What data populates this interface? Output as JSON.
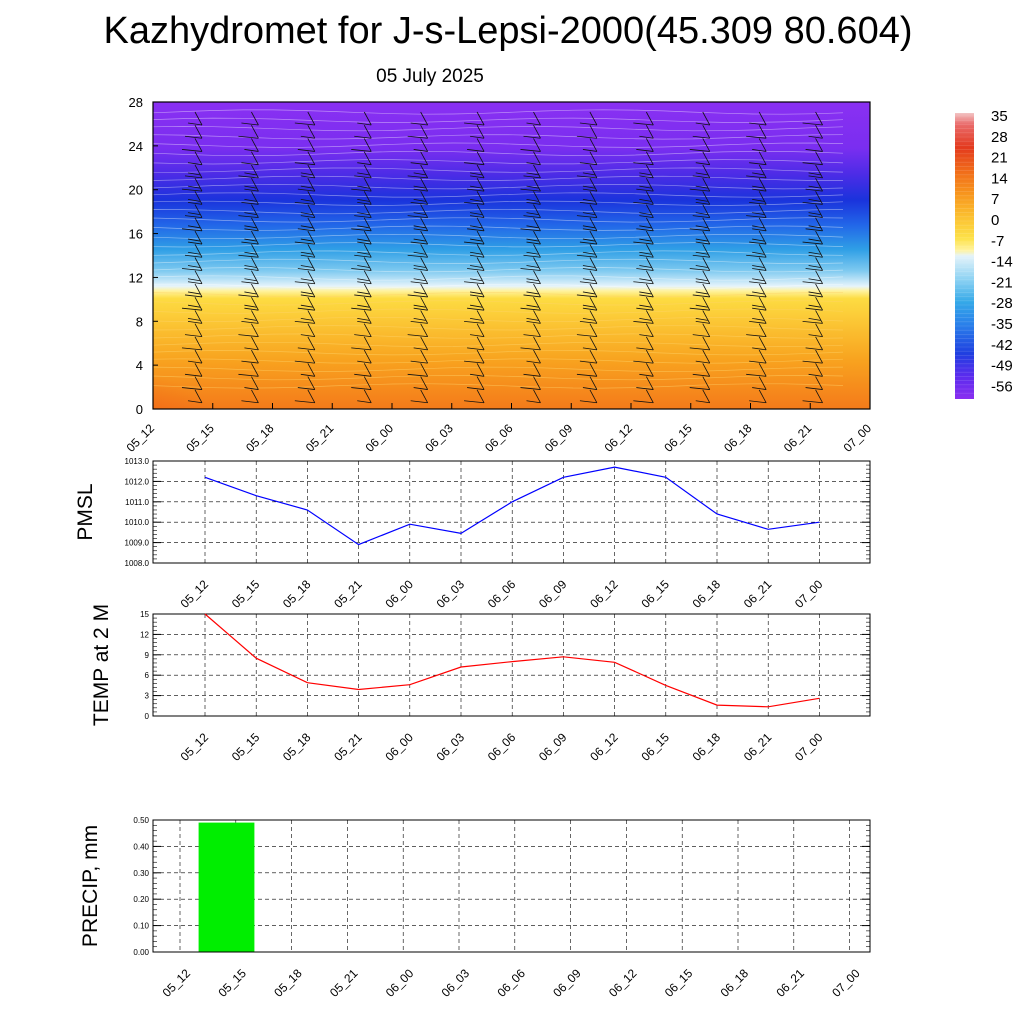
{
  "title": "Kazhydromet for J-s-Lepsi-2000(45.309 80.604)",
  "subtitle": "05 July 2025",
  "time_labels": [
    "05_12",
    "05_15",
    "05_18",
    "05_21",
    "06_00",
    "06_03",
    "06_06",
    "06_09",
    "06_12",
    "06_15",
    "06_18",
    "06_21",
    "07_00"
  ],
  "colorbar": {
    "labels": [
      "35",
      "28",
      "21",
      "14",
      "7",
      "0",
      "-7",
      "-14",
      "-21",
      "-28",
      "-35",
      "-42",
      "-49",
      "-56"
    ],
    "colors": {
      "warm_top": "#e0341c",
      "orange": "#f7941d",
      "yellow": "#fde24a",
      "light_blue": "#d2ecf7",
      "sky_blue": "#35a9e8",
      "blue": "#1a3de0",
      "purple": "#8a2ef0"
    }
  },
  "chart_data": [
    {
      "type": "heatmap",
      "ylabel": "",
      "ylim": [
        0,
        28
      ],
      "y_ticks": [
        "0",
        "4",
        "8",
        "12",
        "16",
        "20",
        "24",
        "28"
      ],
      "x_ticks": [
        "05_12",
        "05_15",
        "05_18",
        "05_21",
        "06_00",
        "06_03",
        "06_06",
        "06_09",
        "06_12",
        "06_15",
        "06_18",
        "06_21",
        "07_00"
      ],
      "grid": false
    },
    {
      "type": "line",
      "ylabel": "PMSL",
      "ylim": [
        1008.0,
        1013.0
      ],
      "y_ticks": [
        "1008.0",
        "1009.0",
        "1010.0",
        "1011.0",
        "1012.0",
        "1013.0"
      ],
      "x": [
        "05_12",
        "05_15",
        "05_18",
        "05_21",
        "06_00",
        "06_03",
        "06_06",
        "06_09",
        "06_12",
        "06_15",
        "06_18",
        "06_21",
        "07_00"
      ],
      "values": [
        1012.2,
        1011.3,
        1010.6,
        1008.9,
        1009.9,
        1009.45,
        1011.0,
        1012.2,
        1012.7,
        1012.2,
        1010.4,
        1009.65,
        1010.0
      ],
      "color": "#0000ff",
      "grid": true
    },
    {
      "type": "line",
      "ylabel": "TEMP at 2 M",
      "ylim": [
        0,
        15
      ],
      "y_ticks": [
        "0",
        "3",
        "6",
        "9",
        "12",
        "15"
      ],
      "x": [
        "05_12",
        "05_15",
        "05_18",
        "05_21",
        "06_00",
        "06_03",
        "06_06",
        "06_09",
        "06_12",
        "06_15",
        "06_18",
        "06_21",
        "07_00"
      ],
      "values": [
        15.0,
        8.5,
        4.9,
        3.9,
        4.6,
        7.2,
        8.0,
        8.7,
        7.9,
        4.5,
        1.6,
        1.35,
        2.6
      ],
      "color": "#ff0000",
      "grid": true
    },
    {
      "type": "bar",
      "ylabel": "PRECIP, mm",
      "ylim": [
        0,
        0.5
      ],
      "y_ticks": [
        "0.00",
        "0.10",
        "0.20",
        "0.30",
        "0.40",
        "0.50"
      ],
      "x_ticks": [
        "05_12",
        "05_15",
        "05_18",
        "05_21",
        "06_00",
        "06_03",
        "06_06",
        "06_09",
        "06_12",
        "06_15",
        "06_18",
        "06_21",
        "07_00"
      ],
      "bars": [
        {
          "from": "05_13",
          "to": "05_16",
          "value": 0.49
        }
      ],
      "color": "#00ee00",
      "grid": true
    }
  ]
}
